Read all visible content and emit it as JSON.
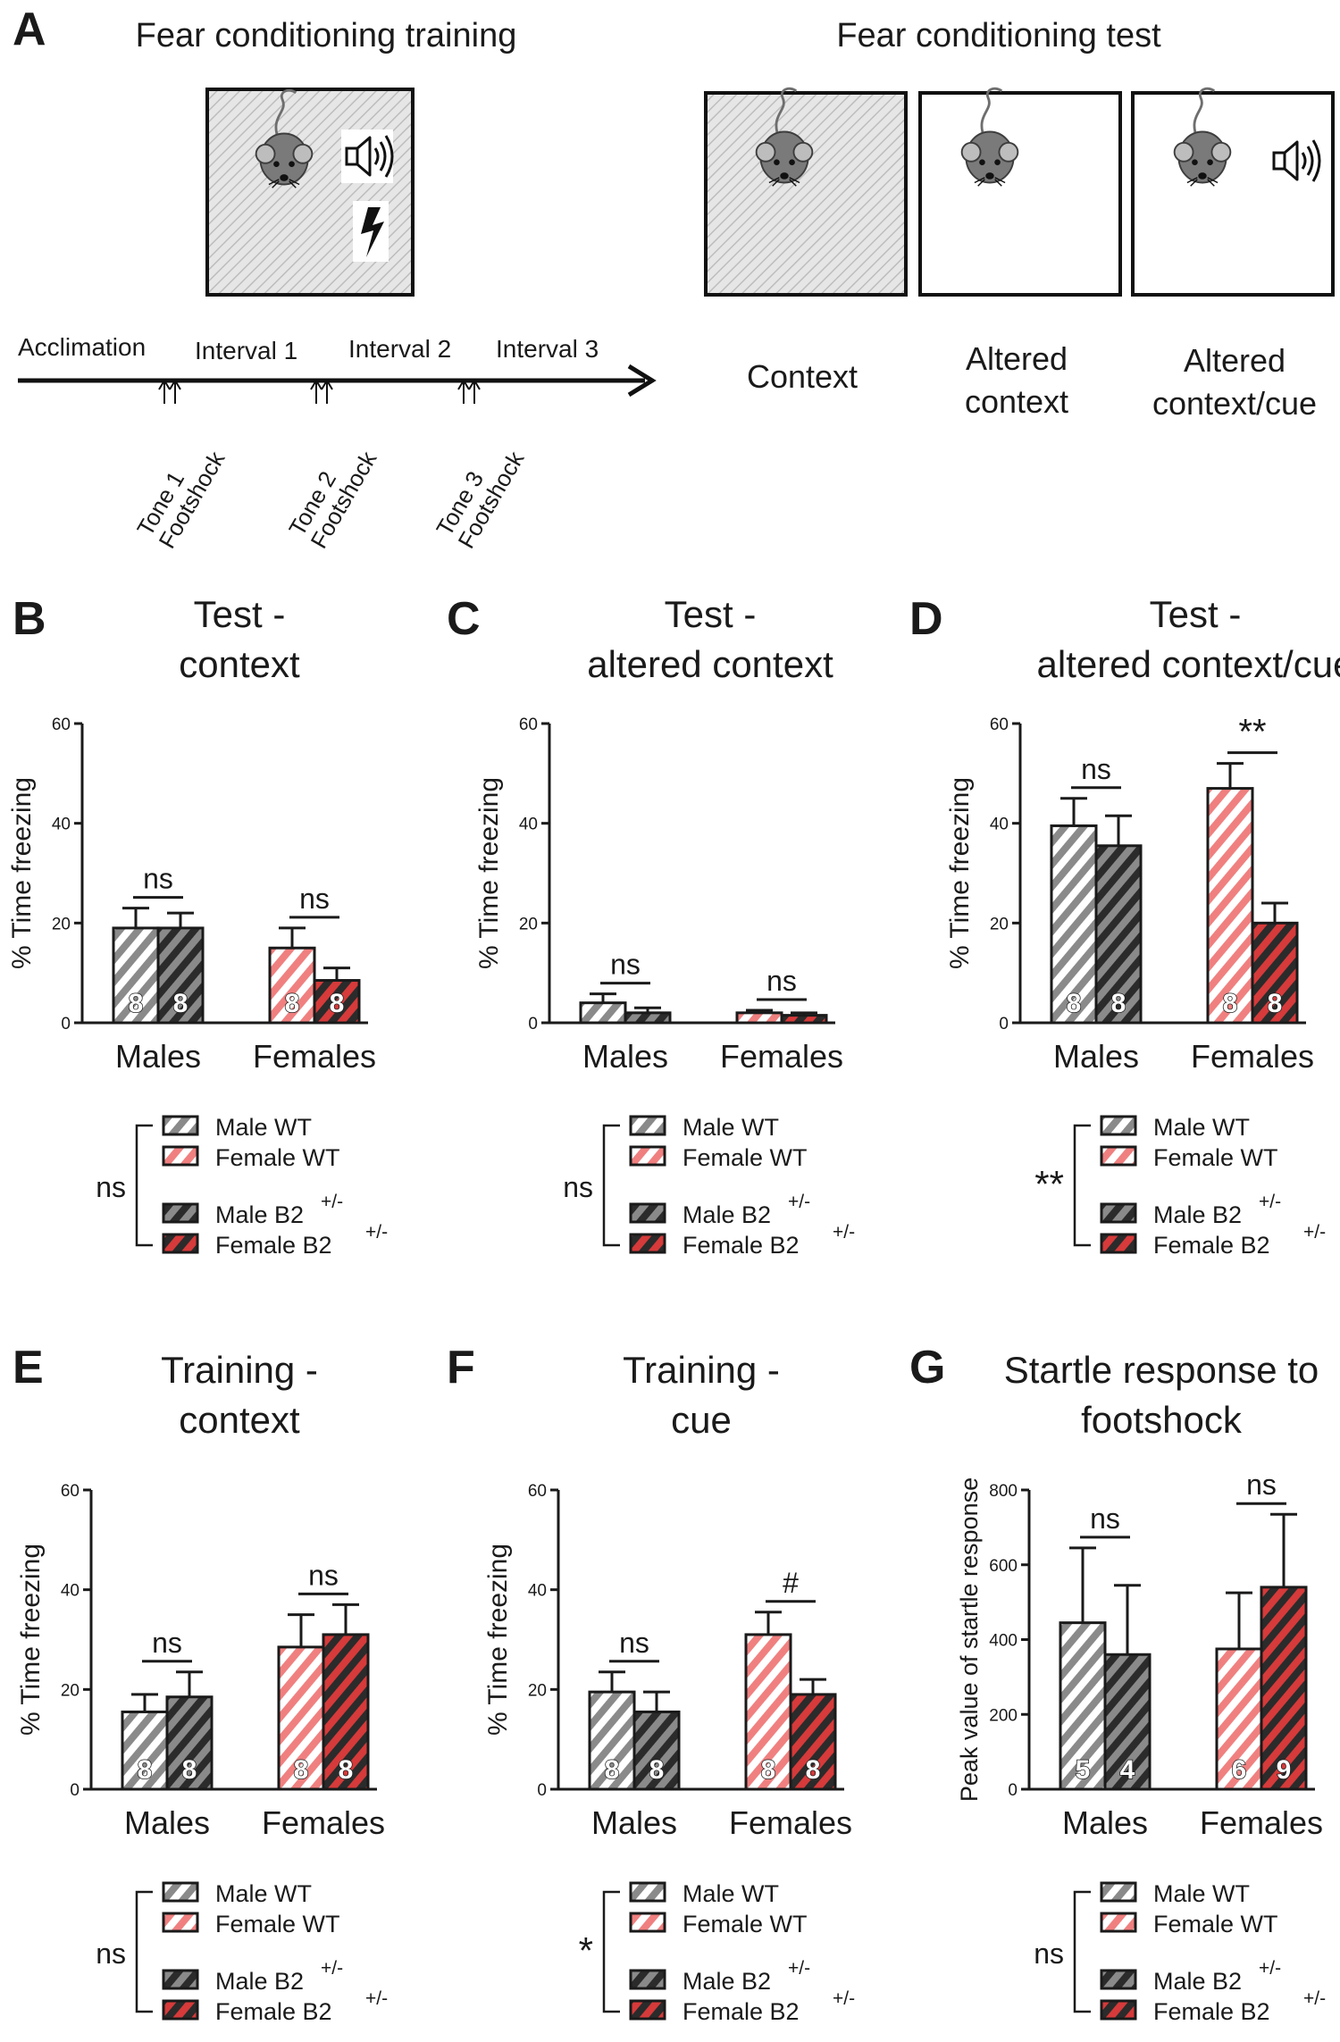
{
  "panelA": {
    "letter": "A",
    "training_title": "Fear conditioning training",
    "test_title": "Fear conditioning test",
    "timeline": [
      "Acclimation",
      "Interval 1",
      "Interval 2",
      "Interval 3"
    ],
    "events": [
      [
        "Tone 1",
        "Footshock"
      ],
      [
        "Tone 2",
        "Footshock"
      ],
      [
        "Tone 3",
        "Footshock"
      ]
    ],
    "test_labels": [
      [
        "Context"
      ],
      [
        "Altered",
        "context"
      ],
      [
        "Altered",
        "context/cue"
      ]
    ]
  },
  "legend": {
    "entries": [
      "Male WT",
      "Female WT",
      "Male B2",
      "Female B2"
    ],
    "superscript": "+/-"
  },
  "colors": {
    "male": "#8a8a8a",
    "female": "#f08080",
    "ko": "#2b2b2b",
    "ko_red": "#d63a3a",
    "axis": "#1a1a1a"
  },
  "chart_data": [
    {
      "id": "B",
      "type": "bar",
      "title": [
        "Test -",
        "context"
      ],
      "ylabel": "% Time freezing",
      "ylim": [
        0,
        60
      ],
      "yticks": [
        0,
        20,
        40,
        60
      ],
      "categories": [
        "Males",
        "Females"
      ],
      "series": [
        {
          "name": "WT",
          "values": [
            19,
            15
          ],
          "err": [
            4,
            4
          ]
        },
        {
          "name": "B2+/-",
          "values": [
            19,
            8.5
          ],
          "err": [
            3,
            2.5
          ]
        }
      ],
      "n": [
        [
          "8",
          "8"
        ],
        [
          "8",
          "8"
        ]
      ],
      "sig": [
        "ns",
        "ns"
      ],
      "overall": "ns"
    },
    {
      "id": "C",
      "type": "bar",
      "title": [
        "Test -",
        "altered context"
      ],
      "ylabel": "% Time freezing",
      "ylim": [
        0,
        60
      ],
      "yticks": [
        0,
        20,
        40,
        60
      ],
      "categories": [
        "Males",
        "Females"
      ],
      "series": [
        {
          "name": "WT",
          "values": [
            4,
            2
          ],
          "err": [
            1.8,
            0.5
          ]
        },
        {
          "name": "B2+/-",
          "values": [
            2,
            1.5
          ],
          "err": [
            1,
            0.5
          ]
        }
      ],
      "n": [
        [
          "",
          ""
        ],
        [
          "",
          ""
        ]
      ],
      "sig": [
        "ns",
        "ns"
      ],
      "overall": "ns"
    },
    {
      "id": "D",
      "type": "bar",
      "title": [
        "Test -",
        "altered context/cue"
      ],
      "ylabel": "% Time freezing",
      "ylim": [
        0,
        60
      ],
      "yticks": [
        0,
        20,
        40,
        60
      ],
      "categories": [
        "Males",
        "Females"
      ],
      "series": [
        {
          "name": "WT",
          "values": [
            39.5,
            47
          ],
          "err": [
            5.5,
            5
          ]
        },
        {
          "name": "B2+/-",
          "values": [
            35.5,
            20
          ],
          "err": [
            6,
            4
          ]
        }
      ],
      "n": [
        [
          "8",
          "8"
        ],
        [
          "8",
          "8"
        ]
      ],
      "sig": [
        "ns",
        "**"
      ],
      "overall": "**"
    },
    {
      "id": "E",
      "type": "bar",
      "title": [
        "Training -",
        "context"
      ],
      "ylabel": "% Time freezing",
      "ylim": [
        0,
        60
      ],
      "yticks": [
        0,
        20,
        40,
        60
      ],
      "categories": [
        "Males",
        "Females"
      ],
      "series": [
        {
          "name": "WT",
          "values": [
            15.5,
            28.5
          ],
          "err": [
            3.5,
            6.5
          ]
        },
        {
          "name": "B2+/-",
          "values": [
            18.5,
            31
          ],
          "err": [
            5,
            6
          ]
        }
      ],
      "n": [
        [
          "8",
          "8"
        ],
        [
          "8",
          "8"
        ]
      ],
      "sig": [
        "ns",
        "ns"
      ],
      "overall": "ns"
    },
    {
      "id": "F",
      "type": "bar",
      "title": [
        "Training -",
        "cue"
      ],
      "ylabel": "% Time freezing",
      "ylim": [
        0,
        60
      ],
      "yticks": [
        0,
        20,
        40,
        60
      ],
      "categories": [
        "Males",
        "Females"
      ],
      "series": [
        {
          "name": "WT",
          "values": [
            19.5,
            31
          ],
          "err": [
            4,
            4.5
          ]
        },
        {
          "name": "B2+/-",
          "values": [
            15.5,
            19
          ],
          "err": [
            4,
            3
          ]
        }
      ],
      "n": [
        [
          "8",
          "8"
        ],
        [
          "8",
          "8"
        ]
      ],
      "sig": [
        "ns",
        "#"
      ],
      "overall": "*"
    },
    {
      "id": "G",
      "type": "bar",
      "title": [
        "Startle response to",
        "footshock"
      ],
      "ylabel": "Peak value of startle response",
      "ylim": [
        0,
        800
      ],
      "yticks": [
        0,
        200,
        400,
        600,
        800
      ],
      "categories": [
        "Males",
        "Females"
      ],
      "series": [
        {
          "name": "WT",
          "values": [
            445,
            375
          ],
          "err": [
            200,
            150
          ]
        },
        {
          "name": "B2+/-",
          "values": [
            360,
            540
          ],
          "err": [
            185,
            195
          ]
        }
      ],
      "n": [
        [
          "5",
          "4"
        ],
        [
          "6",
          "9"
        ]
      ],
      "sig": [
        "ns",
        "ns"
      ],
      "overall": "ns"
    }
  ]
}
